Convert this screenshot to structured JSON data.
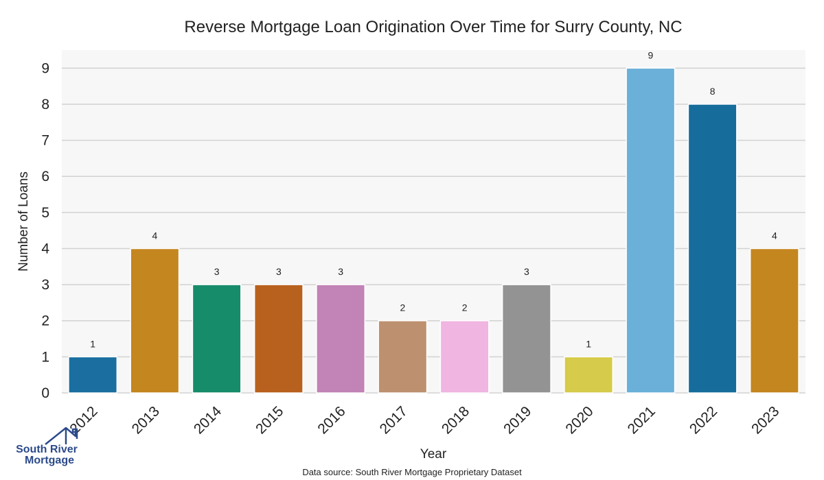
{
  "chart_data": {
    "type": "bar",
    "title": "Reverse Mortgage Loan Origination Over Time for Surry County, NC",
    "xlabel": "Year",
    "ylabel": "Number of Loans",
    "categories": [
      "2012",
      "2013",
      "2014",
      "2015",
      "2016",
      "2017",
      "2018",
      "2019",
      "2020",
      "2021",
      "2022",
      "2023"
    ],
    "values": [
      1,
      4,
      3,
      3,
      3,
      2,
      2,
      3,
      1,
      9,
      8,
      4
    ],
    "colors": [
      "#1a6fa0",
      "#c4861f",
      "#168c6b",
      "#b8611e",
      "#c283b6",
      "#bd916f",
      "#f0b5e0",
      "#939393",
      "#d6cb4a",
      "#6ab0d8",
      "#166d9c",
      "#c4861f"
    ],
    "ylim": [
      0,
      9.5
    ],
    "yticks": [
      0,
      1,
      2,
      3,
      4,
      5,
      6,
      7,
      8,
      9
    ],
    "grid": true,
    "background": "#f7f7f7",
    "grid_color": "#d2d2d2",
    "source_note": "Data source: South River Mortgage Proprietary Dataset"
  },
  "logo": {
    "line1": "South River",
    "line2": "Mortgage",
    "color": "#2b4a8a"
  }
}
